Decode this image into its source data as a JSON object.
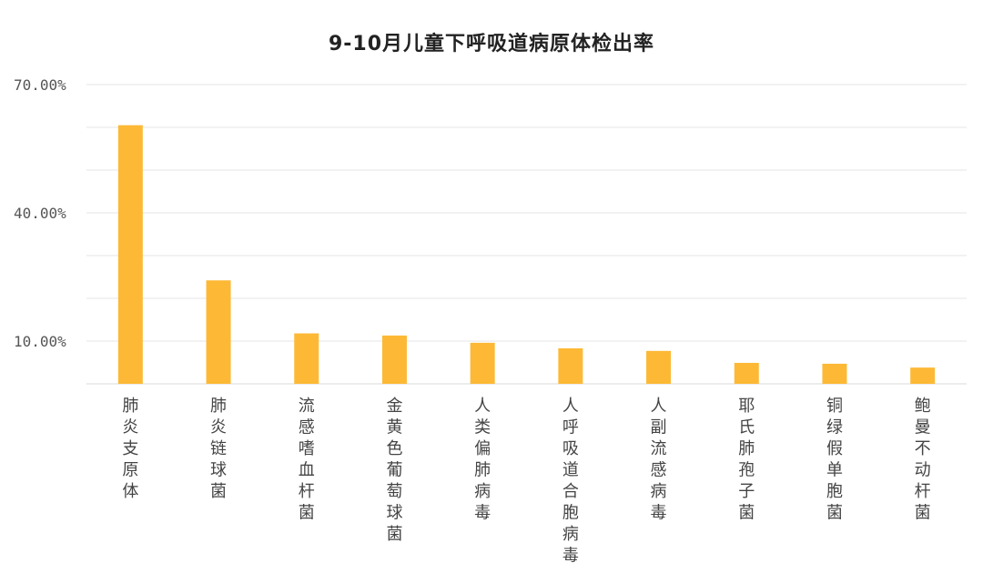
{
  "chart_data": {
    "type": "bar",
    "title": "9-10月儿童下呼吸道病原体检出率",
    "xlabel": "",
    "ylabel": "",
    "ylim": [
      0,
      70
    ],
    "yticks": [
      10,
      40,
      70
    ],
    "ytick_labels": [
      "10.00%",
      "40.00%",
      "70.00%"
    ],
    "grid": true,
    "categories": [
      "肺炎支原体",
      "肺炎链球菌",
      "流感嗜血杆菌",
      "金黄色葡萄球菌",
      "人类偏肺病毒",
      "人呼吸道合胞病毒",
      "人副流感病毒",
      "耶氏肺孢子菌",
      "铜绿假单胞菌",
      "鲍曼不动杆菌"
    ],
    "values": [
      60.5,
      24.2,
      11.8,
      11.3,
      9.6,
      8.3,
      7.7,
      4.9,
      4.7,
      3.8
    ],
    "colors": {
      "bar": "#FDB935",
      "grid": "#E6E6E6",
      "axis": "#D9D9D9"
    }
  }
}
